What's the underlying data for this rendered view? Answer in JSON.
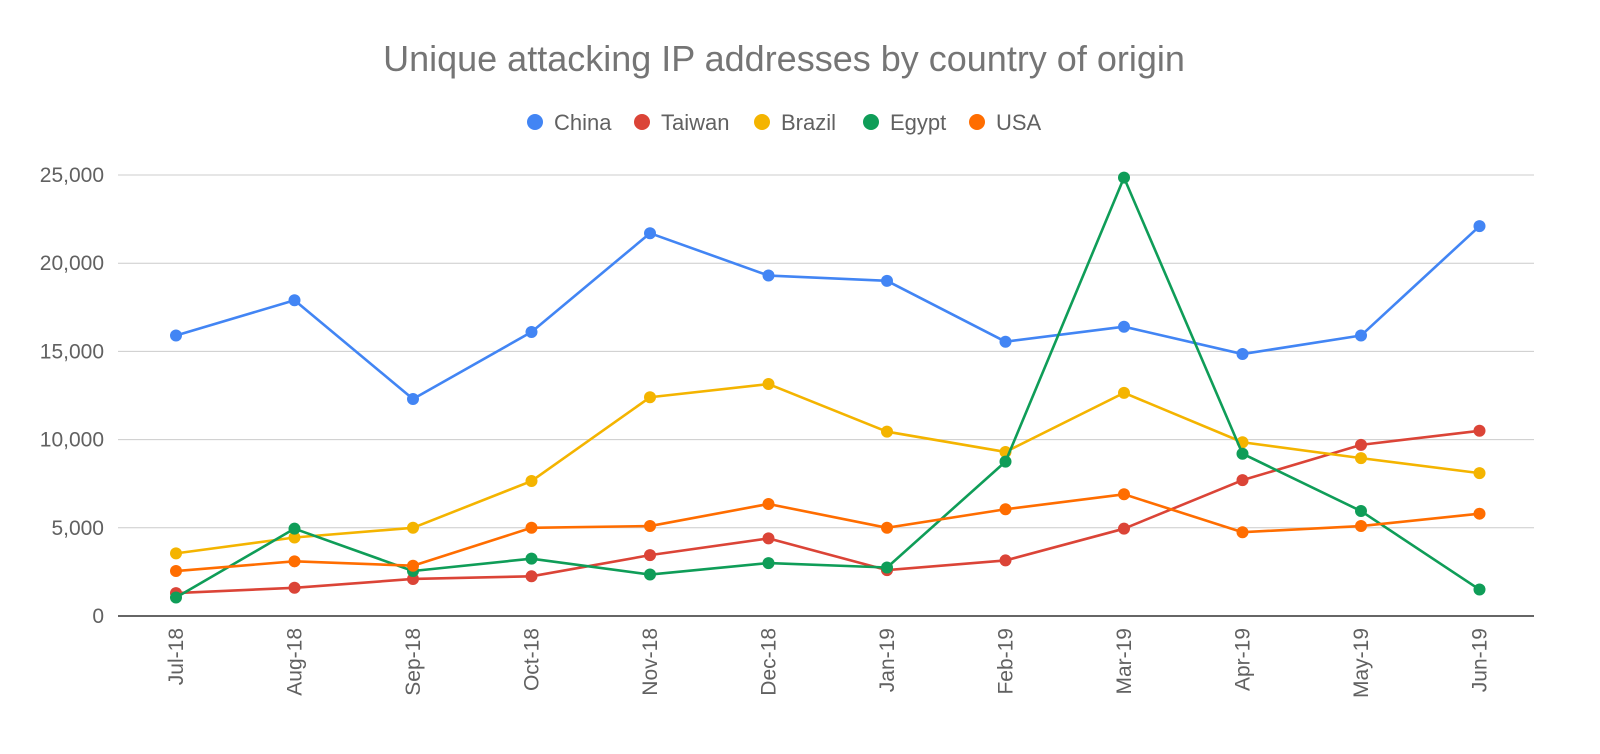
{
  "chart_data": {
    "type": "line",
    "title": "Unique attacking IP addresses by country of origin",
    "xlabel": "",
    "ylabel": "",
    "ylim": [
      0,
      25000
    ],
    "yticks": [
      0,
      5000,
      10000,
      15000,
      20000,
      25000
    ],
    "ytick_labels": [
      "0",
      "5,000",
      "10,000",
      "15,000",
      "20,000",
      "25,000"
    ],
    "grid": true,
    "legend_position": "top-center",
    "categories": [
      "Jul-18",
      "Aug-18",
      "Sep-18",
      "Oct-18",
      "Nov-18",
      "Dec-18",
      "Jan-19",
      "Feb-19",
      "Mar-19",
      "Apr-19",
      "May-19",
      "Jun-19"
    ],
    "series": [
      {
        "name": "China",
        "color": "#4285f4",
        "values": [
          15900,
          17900,
          12300,
          16100,
          21700,
          19300,
          19000,
          15550,
          16400,
          14850,
          15900,
          22100
        ]
      },
      {
        "name": "Taiwan",
        "color": "#db4437",
        "values": [
          1300,
          1600,
          2100,
          2250,
          3450,
          4400,
          2600,
          3150,
          4950,
          7700,
          9700,
          10500
        ]
      },
      {
        "name": "Brazil",
        "color": "#f4b400",
        "values": [
          3550,
          4450,
          5000,
          7650,
          12400,
          13150,
          10450,
          9300,
          12650,
          9850,
          8950,
          8100
        ]
      },
      {
        "name": "Egypt",
        "color": "#0f9d58",
        "values": [
          1050,
          4950,
          2550,
          3250,
          2350,
          3000,
          2750,
          8750,
          24850,
          9200,
          5950,
          1500
        ]
      },
      {
        "name": "USA",
        "color": "#ff6d00",
        "values": [
          2550,
          3100,
          2850,
          5000,
          5100,
          6350,
          5000,
          6050,
          6900,
          4750,
          5100,
          5800
        ]
      }
    ]
  }
}
